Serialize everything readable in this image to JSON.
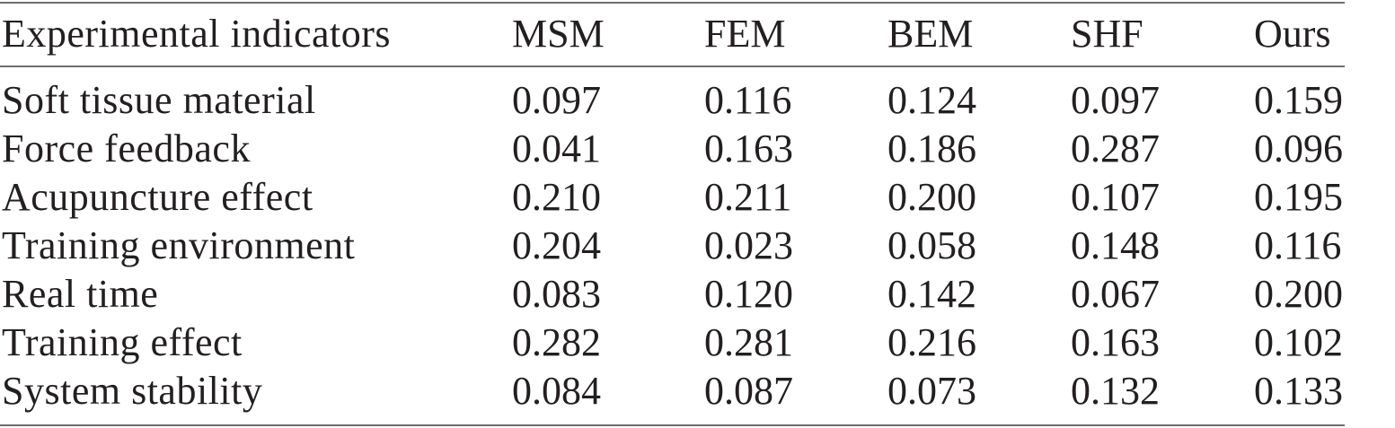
{
  "table": {
    "columns": [
      "Experimental indicators",
      "MSM",
      "FEM",
      "BEM",
      "SHF",
      "Ours"
    ],
    "rows": [
      [
        "Soft tissue material",
        "0.097",
        "0.116",
        "0.124",
        "0.097",
        "0.159"
      ],
      [
        "Force feedback",
        "0.041",
        "0.163",
        "0.186",
        "0.287",
        "0.096"
      ],
      [
        "Acupuncture effect",
        "0.210",
        "0.211",
        "0.200",
        "0.107",
        "0.195"
      ],
      [
        "Training environment",
        "0.204",
        "0.023",
        "0.058",
        "0.148",
        "0.116"
      ],
      [
        "Real time",
        "0.083",
        "0.120",
        "0.142",
        "0.067",
        "0.200"
      ],
      [
        "Training effect",
        "0.282",
        "0.281",
        "0.216",
        "0.163",
        "0.102"
      ],
      [
        "System stability",
        "0.084",
        "0.087",
        "0.073",
        "0.132",
        "0.133"
      ]
    ]
  }
}
